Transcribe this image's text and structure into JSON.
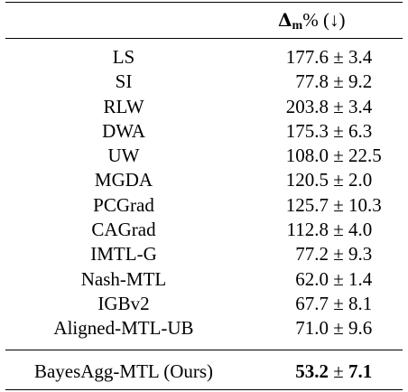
{
  "table": {
    "header": {
      "metric_symbol": "Δ",
      "metric_subscript": "m",
      "metric_unit": "%",
      "direction": "(↓)"
    },
    "rows": [
      {
        "method": "LS",
        "mean": "177.6",
        "pm": "±",
        "std": "3.4"
      },
      {
        "method": "SI",
        "mean": "77.8",
        "pm": "±",
        "std": "9.2"
      },
      {
        "method": "RLW",
        "mean": "203.8",
        "pm": "±",
        "std": "3.4"
      },
      {
        "method": "DWA",
        "mean": "175.3",
        "pm": "±",
        "std": "6.3"
      },
      {
        "method": "UW",
        "mean": "108.0",
        "pm": "±",
        "std": "22.5"
      },
      {
        "method": "MGDA",
        "mean": "120.5",
        "pm": "±",
        "std": "2.0"
      },
      {
        "method": "PCGrad",
        "mean": "125.7",
        "pm": "±",
        "std": "10.3"
      },
      {
        "method": "CAGrad",
        "mean": "112.8",
        "pm": "±",
        "std": "4.0"
      },
      {
        "method": "IMTL-G",
        "mean": "77.2",
        "pm": "±",
        "std": "9.3"
      },
      {
        "method": "Nash-MTL",
        "mean": "62.0",
        "pm": "±",
        "std": "1.4"
      },
      {
        "method": "IGBv2",
        "mean": "67.7",
        "pm": "±",
        "std": "8.1"
      },
      {
        "method": "Aligned-MTL-UB",
        "mean": "71.0",
        "pm": "±",
        "std": "9.6"
      }
    ],
    "ours": {
      "method": "BayesAgg-MTL (Ours)",
      "mean": "53.2",
      "pm": "±",
      "std": "7.1"
    }
  }
}
